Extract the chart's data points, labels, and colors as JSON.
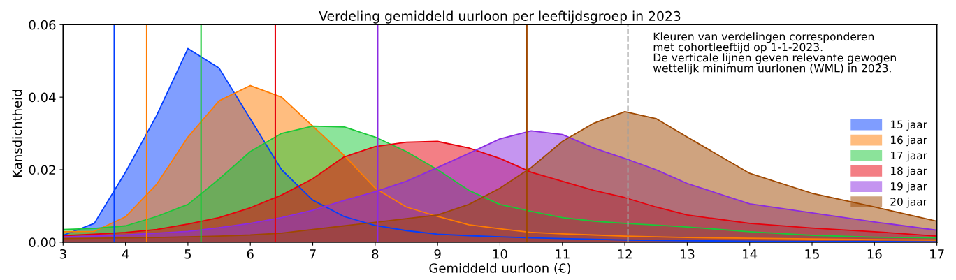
{
  "chart_data": {
    "type": "area",
    "title": "Verdeling gemiddeld uurloon per leeftijdsgroep in 2023",
    "xlabel": "Gemiddeld uurloon (€)",
    "ylabel": "Kansdichtheid",
    "x": [
      3,
      3.5,
      4,
      4.5,
      5,
      5.5,
      6,
      6.5,
      7,
      7.5,
      8,
      8.5,
      9,
      9.5,
      10,
      10.5,
      11,
      11.5,
      12,
      12.5,
      13,
      14,
      15,
      16,
      17
    ],
    "series": [
      {
        "name": "15 jaar",
        "color": "#023eff",
        "values": [
          0.0019,
          0.0052,
          0.0193,
          0.035,
          0.0534,
          0.048,
          0.034,
          0.02,
          0.0116,
          0.0071,
          0.0046,
          0.0032,
          0.0022,
          0.0018,
          0.0015,
          0.0012,
          0.001,
          0.0008,
          0.0006,
          0.0005,
          0.0004,
          0.0003,
          0.0002,
          0.0002,
          0.0001
        ]
      },
      {
        "name": "16 jaar",
        "color": "#ff7c00",
        "values": [
          0.0029,
          0.003,
          0.007,
          0.016,
          0.029,
          0.039,
          0.0432,
          0.04,
          0.032,
          0.024,
          0.0149,
          0.0097,
          0.0071,
          0.0048,
          0.0037,
          0.0027,
          0.0023,
          0.002,
          0.0017,
          0.0015,
          0.0013,
          0.0011,
          0.0009,
          0.0007,
          0.0006
        ]
      },
      {
        "name": "17 jaar",
        "color": "#1ac938",
        "values": [
          0.0035,
          0.0038,
          0.0045,
          0.0071,
          0.0104,
          0.0174,
          0.025,
          0.03,
          0.032,
          0.0318,
          0.029,
          0.025,
          0.02,
          0.0143,
          0.0104,
          0.0085,
          0.0068,
          0.0058,
          0.0052,
          0.0047,
          0.0042,
          0.0029,
          0.0019,
          0.0014,
          0.0012
        ]
      },
      {
        "name": "18 jaar",
        "color": "#e8000b",
        "values": [
          0.0018,
          0.0022,
          0.0027,
          0.0035,
          0.005,
          0.0068,
          0.0095,
          0.013,
          0.0175,
          0.0235,
          0.0264,
          0.0276,
          0.0278,
          0.026,
          0.0231,
          0.0193,
          0.0168,
          0.0143,
          0.0123,
          0.0097,
          0.0075,
          0.0052,
          0.0039,
          0.0029,
          0.0017
        ]
      },
      {
        "name": "19 jaar",
        "color": "#8b2be2",
        "values": [
          0.0015,
          0.0017,
          0.002,
          0.0025,
          0.003,
          0.004,
          0.0052,
          0.0068,
          0.0088,
          0.0115,
          0.0139,
          0.0168,
          0.0206,
          0.0245,
          0.0285,
          0.0307,
          0.0297,
          0.026,
          0.0231,
          0.02,
          0.0162,
          0.0106,
          0.0081,
          0.0056,
          0.0033
        ]
      },
      {
        "name": "20 jaar",
        "color": "#9f4800",
        "values": [
          0.001,
          0.0011,
          0.0012,
          0.0013,
          0.0015,
          0.0017,
          0.002,
          0.0025,
          0.0035,
          0.0045,
          0.0055,
          0.0065,
          0.0075,
          0.0104,
          0.0149,
          0.0206,
          0.0278,
          0.0328,
          0.036,
          0.0341,
          0.029,
          0.019,
          0.0135,
          0.0097,
          0.0058
        ]
      }
    ],
    "ref_lines": [
      {
        "axis": "x",
        "value": 3.82,
        "color": "#023eff"
      },
      {
        "axis": "x",
        "value": 4.34,
        "color": "#ff7c00"
      },
      {
        "axis": "x",
        "value": 5.21,
        "color": "#1ac938"
      },
      {
        "axis": "x",
        "value": 6.4,
        "color": "#e8000b"
      },
      {
        "axis": "x",
        "value": 8.04,
        "color": "#8b2be2"
      },
      {
        "axis": "x",
        "value": 10.43,
        "color": "#9f4800"
      },
      {
        "axis": "x",
        "value": 12.05,
        "color": "#a0a0a0",
        "line_style": "dashed"
      }
    ],
    "annotations": [
      "Kleuren van verdelingen corresponderen\nmet cohortleeftijd op 1-1-2023.\nDe verticale lijnen geven relevante gewogen\nwettelijk minimum uurlonen (WML) in 2023."
    ],
    "xlim": [
      3,
      17
    ],
    "xticks": [
      3,
      4,
      5,
      6,
      7,
      8,
      9,
      10,
      11,
      12,
      13,
      14,
      15,
      16,
      17
    ],
    "ylim": [
      0,
      0.06
    ],
    "yticks": [
      {
        "value": 0,
        "label": "0.00"
      },
      {
        "value": 0.02,
        "label": "0.02"
      },
      {
        "value": 0.04,
        "label": "0.04"
      },
      {
        "value": 0.06,
        "label": "0.06"
      }
    ],
    "legend": "right",
    "grid": false
  }
}
